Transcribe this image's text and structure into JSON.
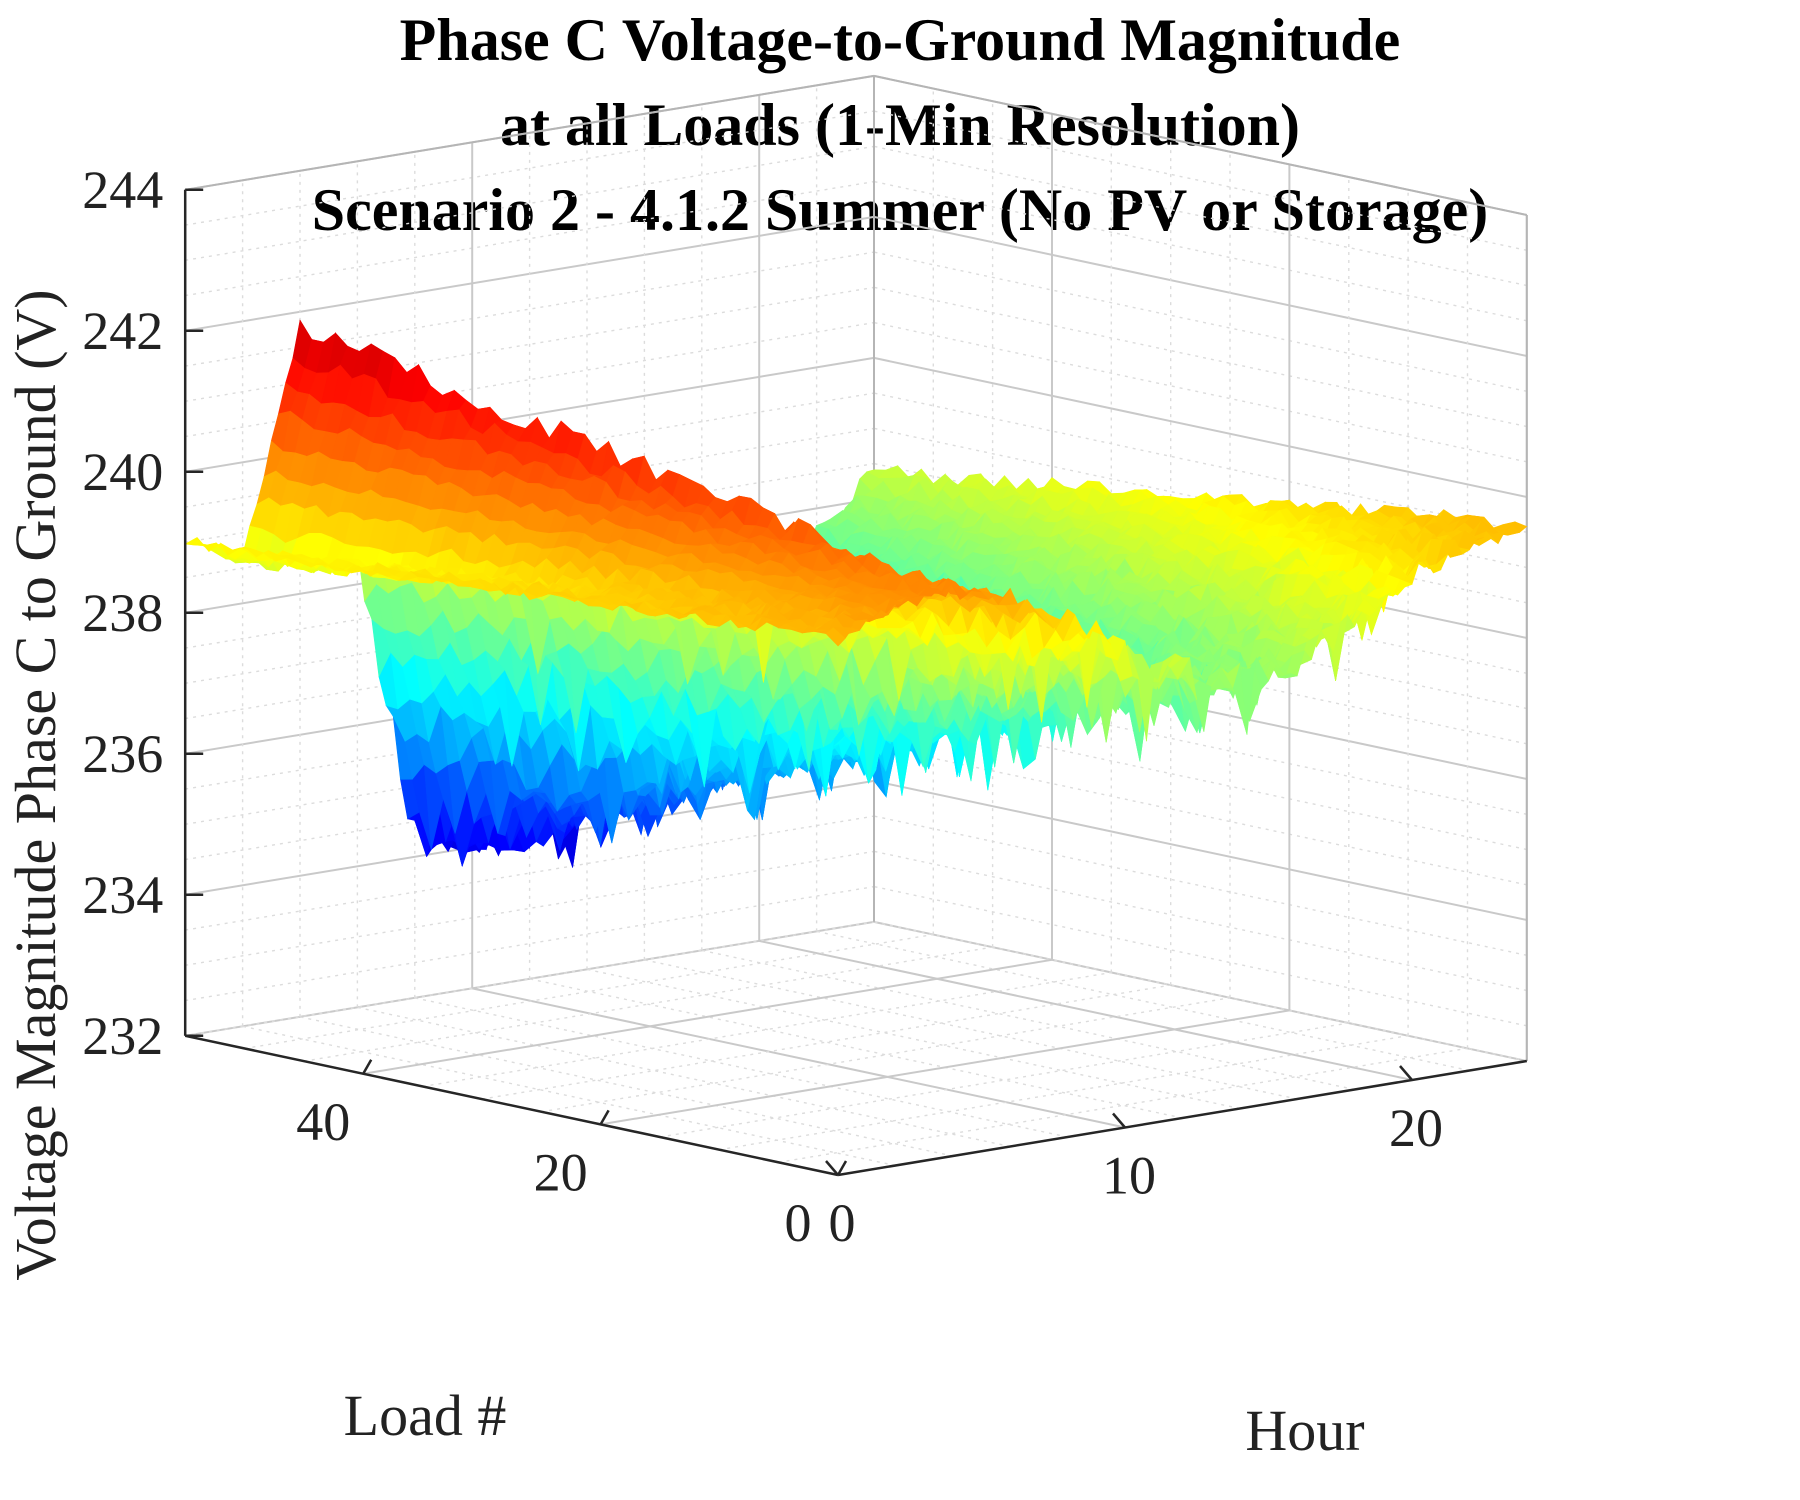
{
  "chart_data": {
    "type": "surface3d",
    "title": [
      "Phase C Voltage-to-Ground Magnitude",
      "at all Loads (1-Min Resolution)",
      "Scenario 2 - 4.1.2 Summer (No PV or Storage)"
    ],
    "xlabel": "Hour",
    "ylabel": "Load #",
    "zlabel": "Voltage Magnitude Phase C to Ground (V)",
    "xlim": [
      0,
      24
    ],
    "ylim": [
      0,
      55
    ],
    "zlim": [
      232,
      244
    ],
    "x_ticks": [
      "0",
      "10",
      "20"
    ],
    "y_ticks": [
      "0",
      "20",
      "40"
    ],
    "z_ticks": [
      "232",
      "234",
      "236",
      "238",
      "240",
      "242",
      "244"
    ],
    "colormap": "jet",
    "grid": true,
    "profile": {
      "hours": [
        0,
        2,
        4,
        6,
        8,
        10,
        12,
        14,
        16,
        18,
        20,
        22,
        24
      ],
      "min_load_V": [
        239.6,
        239.9,
        240.0,
        239.8,
        239.2,
        238.7,
        238.3,
        238.1,
        238.2,
        238.6,
        239.1,
        239.5,
        239.6
      ],
      "max_load_V": [
        239.0,
        238.6,
        241.8,
        238.4,
        234.3,
        234.0,
        234.4,
        234.6,
        235.5,
        236.0,
        237.0,
        237.6,
        238.4
      ]
    },
    "z_range_V": [
      233.2,
      242.4
    ]
  }
}
